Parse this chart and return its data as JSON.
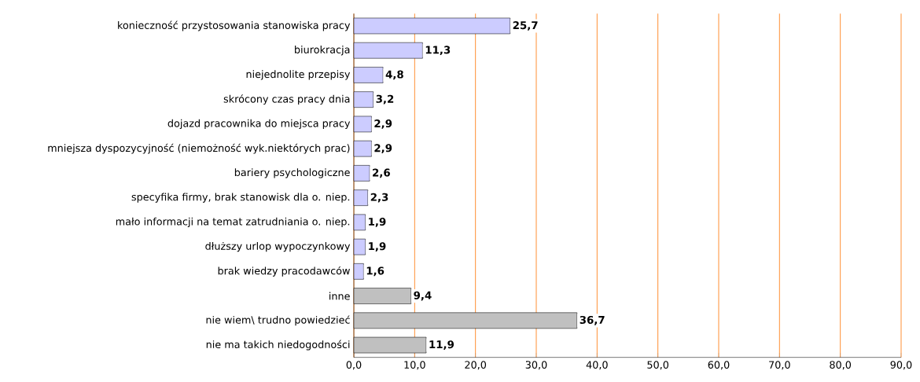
{
  "chart_data": {
    "type": "bar",
    "orientation": "horizontal",
    "categories": [
      "konieczność przystosowania stanowiska pracy",
      "biurokracja",
      "niejednolite przepisy",
      "skrócony czas pracy dnia",
      "dojazd pracownika do miejsca pracy",
      "mniejsza dyspozycyjność (niemożność wyk.niektórych prac)",
      "bariery psychologiczne",
      "specyfika firmy, brak stanowisk dla o. niep.",
      "mało informacji na temat zatrudniania o. niep.",
      "dłuższy urlop wypoczynkowy",
      "brak wiedzy pracodawców",
      "inne",
      "nie wiem\\ trudno powiedzieć",
      "nie ma takich niedogodności"
    ],
    "values": [
      25.7,
      11.3,
      4.8,
      3.2,
      2.9,
      2.9,
      2.6,
      2.3,
      1.9,
      1.9,
      1.6,
      9.4,
      36.7,
      11.9
    ],
    "value_labels": [
      "25,7",
      "11,3",
      "4,8",
      "3,2",
      "2,9",
      "2,9",
      "2,6",
      "2,3",
      "1,9",
      "1,9",
      "1,6",
      "9,4",
      "36,7",
      "11,9"
    ],
    "colors": [
      "#ccccff",
      "#ccccff",
      "#ccccff",
      "#ccccff",
      "#ccccff",
      "#ccccff",
      "#ccccff",
      "#ccccff",
      "#ccccff",
      "#ccccff",
      "#ccccff",
      "#c0c0c0",
      "#c0c0c0",
      "#c0c0c0"
    ],
    "xlim": [
      0,
      90
    ],
    "xticks": [
      {
        "value": 0,
        "label": "0,0"
      },
      {
        "value": 10,
        "label": "10,0"
      },
      {
        "value": 20,
        "label": "20,0"
      },
      {
        "value": 30,
        "label": "30,0"
      },
      {
        "value": 40,
        "label": "40,0"
      },
      {
        "value": 50,
        "label": "50,0"
      },
      {
        "value": 60,
        "label": "60,0"
      },
      {
        "value": 70,
        "label": "70,0"
      },
      {
        "value": 80,
        "label": "80,0"
      },
      {
        "value": 90,
        "label": "90,0"
      }
    ],
    "grid": "x"
  }
}
